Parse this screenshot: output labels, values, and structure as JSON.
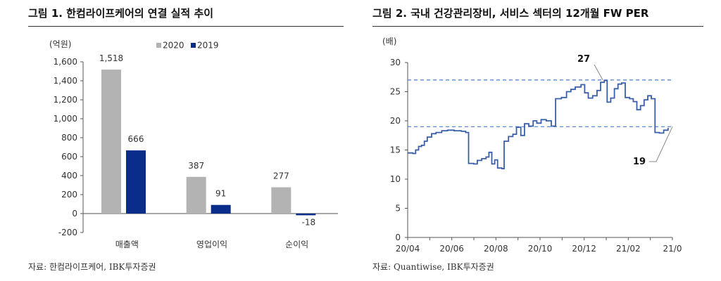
{
  "left_panel": {
    "title": "그림 1. 한컴라이프케어의 연결 실적 추이",
    "source": "자료: 한컴라이프케어, IBK투자증권"
  },
  "right_panel": {
    "title": "그림 2. 국내 건강관리장비, 서비스 섹터의 12개월 FW PER",
    "source": "자료: Quantiwise, IBK투자증권"
  },
  "colors": {
    "series_2020": "#b3b3b3",
    "series_2019": "#0a2d8c",
    "line": "#3a5fa8",
    "dashed": "#4a7fd0"
  },
  "chart_data": [
    {
      "type": "bar",
      "unit_label": "(억원)",
      "categories": [
        "매출액",
        "영업이익",
        "순이익"
      ],
      "series": [
        {
          "name": "2020",
          "values": [
            1518,
            387,
            277
          ],
          "labels": [
            "1,518",
            "387",
            "277"
          ]
        },
        {
          "name": "2019",
          "values": [
            666,
            91,
            -18
          ],
          "labels": [
            "666",
            "91",
            "-18"
          ]
        }
      ],
      "ylim": [
        -200,
        1600
      ],
      "yticks": [
        -200,
        0,
        200,
        400,
        600,
        800,
        1000,
        1200,
        1400,
        1600
      ],
      "ytick_labels": [
        "-200",
        "0",
        "200",
        "400",
        "600",
        "800",
        "1,000",
        "1,200",
        "1,400",
        "1,600"
      ],
      "legend": "top"
    },
    {
      "type": "line",
      "unit_label": "(배)",
      "ylim": [
        0,
        30
      ],
      "yticks": [
        0,
        5,
        10,
        15,
        20,
        25,
        30
      ],
      "xticks": [
        "20/04",
        "20/06",
        "20/08",
        "20/10",
        "20/12",
        "21/02",
        "21/0"
      ],
      "x_range_months": [
        "2020-04",
        "2021-04"
      ],
      "reference_lines": [
        27,
        19
      ],
      "annotations": [
        {
          "text": "27",
          "x": "2020-12-26",
          "y": 27
        },
        {
          "text": "19",
          "x": "2021-04-01",
          "y": 19
        }
      ],
      "series": [
        {
          "points": [
            [
              "2020-04-01",
              14.5
            ],
            [
              "2020-04-08",
              14.4
            ],
            [
              "2020-04-12",
              15.0
            ],
            [
              "2020-04-16",
              15.6
            ],
            [
              "2020-04-20",
              15.8
            ],
            [
              "2020-04-24",
              16.5
            ],
            [
              "2020-04-28",
              17.2
            ],
            [
              "2020-05-04",
              17.8
            ],
            [
              "2020-05-10",
              18.0
            ],
            [
              "2020-05-18",
              18.3
            ],
            [
              "2020-05-26",
              18.4
            ],
            [
              "2020-06-04",
              18.3
            ],
            [
              "2020-06-14",
              18.2
            ],
            [
              "2020-06-20",
              18.0
            ],
            [
              "2020-06-24",
              12.7
            ],
            [
              "2020-07-01",
              12.6
            ],
            [
              "2020-07-06",
              13.2
            ],
            [
              "2020-07-12",
              13.5
            ],
            [
              "2020-07-18",
              13.8
            ],
            [
              "2020-07-22",
              14.6
            ],
            [
              "2020-07-26",
              12.6
            ],
            [
              "2020-07-30",
              13.3
            ],
            [
              "2020-08-03",
              11.9
            ],
            [
              "2020-08-09",
              11.8
            ],
            [
              "2020-08-12",
              16.5
            ],
            [
              "2020-08-18",
              17.3
            ],
            [
              "2020-08-24",
              17.7
            ],
            [
              "2020-08-29",
              18.9
            ],
            [
              "2020-09-04",
              17.5
            ],
            [
              "2020-09-09",
              19.5
            ],
            [
              "2020-09-15",
              19.1
            ],
            [
              "2020-09-21",
              20.0
            ],
            [
              "2020-09-26",
              19.6
            ],
            [
              "2020-10-02",
              20.2
            ],
            [
              "2020-10-09",
              20.0
            ],
            [
              "2020-10-16",
              19.1
            ],
            [
              "2020-10-22",
              23.8
            ],
            [
              "2020-10-30",
              24.0
            ],
            [
              "2020-11-06",
              25.0
            ],
            [
              "2020-11-12",
              25.4
            ],
            [
              "2020-11-18",
              25.8
            ],
            [
              "2020-11-26",
              26.2
            ],
            [
              "2020-12-01",
              24.8
            ],
            [
              "2020-12-06",
              23.9
            ],
            [
              "2020-12-12",
              24.3
            ],
            [
              "2020-12-18",
              25.2
            ],
            [
              "2020-12-23",
              26.6
            ],
            [
              "2020-12-28",
              26.9
            ],
            [
              "2021-01-01",
              23.2
            ],
            [
              "2021-01-06",
              23.9
            ],
            [
              "2021-01-11",
              25.5
            ],
            [
              "2021-01-16",
              26.3
            ],
            [
              "2021-01-21",
              26.5
            ],
            [
              "2021-01-26",
              24.0
            ],
            [
              "2021-02-01",
              23.8
            ],
            [
              "2021-02-06",
              23.3
            ],
            [
              "2021-02-11",
              21.9
            ],
            [
              "2021-02-16",
              22.6
            ],
            [
              "2021-02-21",
              23.6
            ],
            [
              "2021-02-26",
              24.3
            ],
            [
              "2021-03-03",
              23.8
            ],
            [
              "2021-03-08",
              18.0
            ],
            [
              "2021-03-14",
              17.9
            ],
            [
              "2021-03-20",
              18.4
            ],
            [
              "2021-03-26",
              18.8
            ]
          ]
        }
      ]
    }
  ]
}
